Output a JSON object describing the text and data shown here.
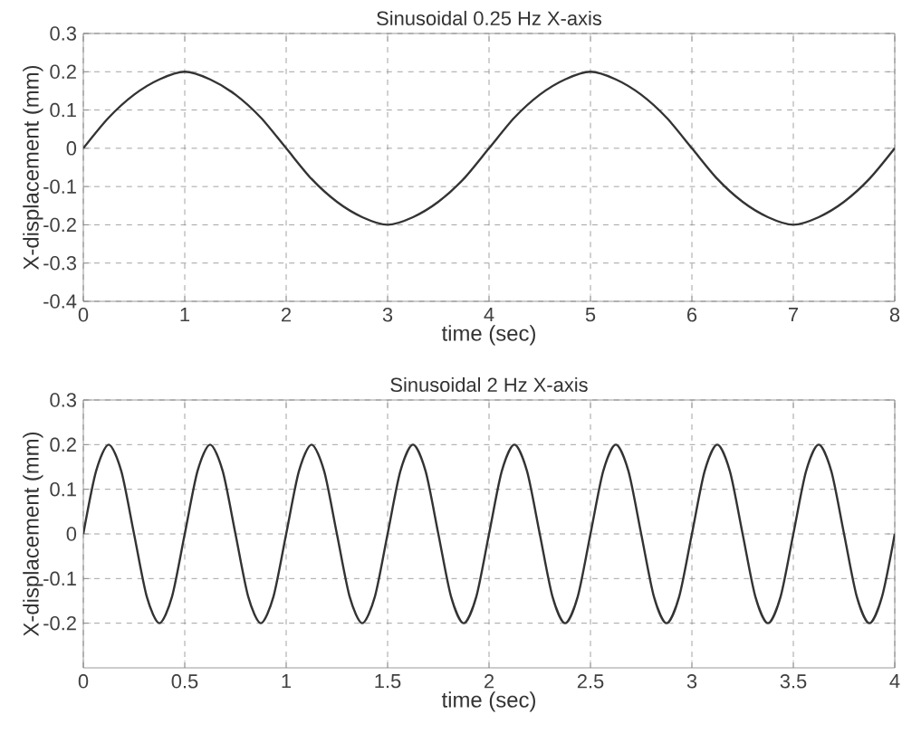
{
  "chart_data": [
    {
      "type": "line",
      "title": "Sinusoidal 0.25 Hz X-axis",
      "xlabel": "time (sec)",
      "ylabel": "X-displacement (mm)",
      "x": [
        0,
        0.25,
        0.5,
        0.75,
        1,
        1.25,
        1.5,
        1.75,
        2,
        2.25,
        2.5,
        2.75,
        3,
        3.25,
        3.5,
        3.75,
        4,
        4.25,
        4.5,
        4.75,
        5,
        5.25,
        5.5,
        5.75,
        6,
        6.25,
        6.5,
        6.75,
        7,
        7.25,
        7.5,
        7.75,
        8
      ],
      "series": [
        {
          "color": "#333333",
          "values": [
            0,
            0.08,
            0.14,
            0.18,
            0.2,
            0.18,
            0.14,
            0.08,
            0,
            -0.08,
            -0.14,
            -0.18,
            -0.2,
            -0.18,
            -0.14,
            -0.08,
            0,
            0.08,
            0.14,
            0.18,
            0.2,
            0.18,
            0.14,
            0.08,
            0,
            -0.08,
            -0.14,
            -0.18,
            -0.2,
            -0.18,
            -0.14,
            -0.08,
            0
          ]
        }
      ],
      "xlim": [
        0,
        8
      ],
      "ylim": [
        -0.4,
        0.3
      ],
      "xticks": [
        0,
        1,
        2,
        3,
        4,
        5,
        6,
        7,
        8
      ],
      "yticks": [
        -0.4,
        -0.3,
        -0.2,
        -0.1,
        0,
        0.1,
        0.2,
        0.3
      ],
      "grid": true
    },
    {
      "type": "line",
      "title": "Sinusoidal 2 Hz X-axis",
      "xlabel": "time (sec)",
      "ylabel": "X-displacement (mm)",
      "x": [
        0,
        0.0625,
        0.125,
        0.1875,
        0.25,
        0.3125,
        0.375,
        0.4375,
        0.5,
        0.5625,
        0.625,
        0.6875,
        0.75,
        0.8125,
        0.875,
        0.9375,
        1,
        1.0625,
        1.125,
        1.1875,
        1.25,
        1.3125,
        1.375,
        1.4375,
        1.5,
        1.5625,
        1.625,
        1.6875,
        1.75,
        1.8125,
        1.875,
        1.9375,
        2,
        2.0625,
        2.125,
        2.1875,
        2.25,
        2.3125,
        2.375,
        2.4375,
        2.5,
        2.5625,
        2.625,
        2.6875,
        2.75,
        2.8125,
        2.875,
        2.9375,
        3,
        3.0625,
        3.125,
        3.1875,
        3.25,
        3.3125,
        3.375,
        3.4375,
        3.5,
        3.5625,
        3.625,
        3.6875,
        3.75,
        3.8125,
        3.875,
        3.9375,
        4
      ],
      "series": [
        {
          "color": "#333333",
          "values": [
            0,
            0.14,
            0.2,
            0.14,
            0,
            -0.14,
            -0.2,
            -0.14,
            0,
            0.14,
            0.2,
            0.14,
            0,
            -0.14,
            -0.2,
            -0.14,
            0,
            0.14,
            0.2,
            0.14,
            0,
            -0.14,
            -0.2,
            -0.14,
            0,
            0.14,
            0.2,
            0.14,
            0,
            -0.14,
            -0.2,
            -0.14,
            0,
            0.14,
            0.2,
            0.14,
            0,
            -0.14,
            -0.2,
            -0.14,
            0,
            0.14,
            0.2,
            0.14,
            0,
            -0.14,
            -0.2,
            -0.14,
            0,
            0.14,
            0.2,
            0.14,
            0,
            -0.14,
            -0.2,
            -0.14,
            0,
            0.14,
            0.2,
            0.14,
            0,
            -0.14,
            -0.2,
            -0.14,
            0
          ]
        }
      ],
      "xlim": [
        0,
        4
      ],
      "ylim": [
        -0.3,
        0.3
      ],
      "xticks": [
        0,
        0.5,
        1,
        1.5,
        2,
        2.5,
        3,
        3.5,
        4
      ],
      "yticks": [
        -0.2,
        -0.1,
        0,
        0.1,
        0.2,
        0.3
      ],
      "grid": true
    }
  ]
}
